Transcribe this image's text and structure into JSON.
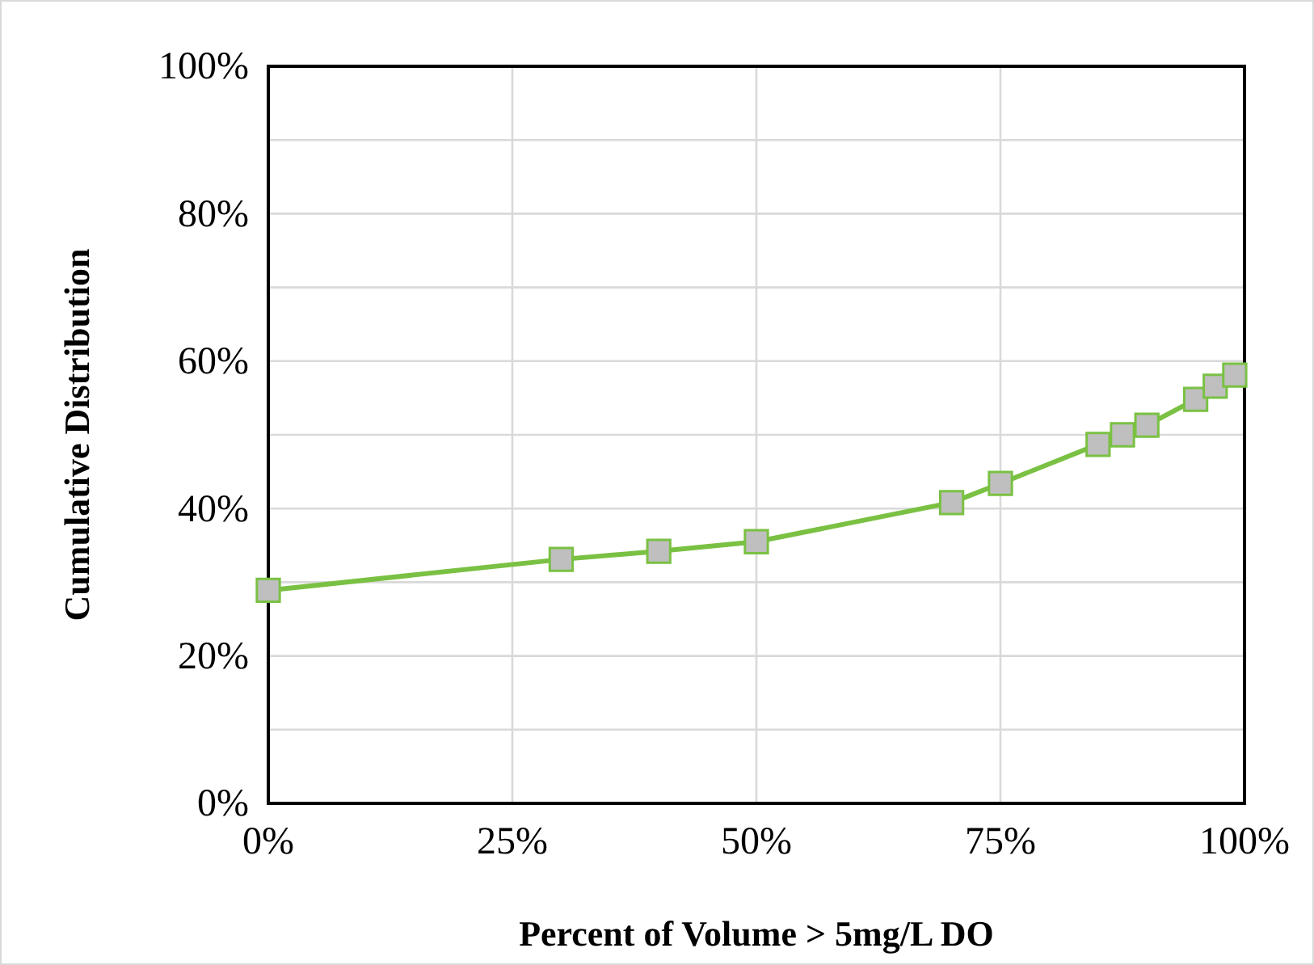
{
  "chart_data": {
    "type": "line",
    "xlabel": "Percent of Volume > 5mg/L DO",
    "ylabel": "Cumulative Distribution",
    "x": [
      0,
      30,
      40,
      50,
      70,
      75,
      85,
      87.5,
      90,
      95,
      97,
      99
    ],
    "series": [
      {
        "color": "#7ac143",
        "values": [
          28.9,
          33.1,
          34.2,
          35.5,
          40.8,
          43.4,
          48.7,
          50,
          51.3,
          54.8,
          56.6,
          58.1
        ]
      }
    ],
    "xlim": [
      0,
      100
    ],
    "xticks": [
      {
        "value": 0,
        "label": "0%"
      },
      {
        "value": 25,
        "label": "25%"
      },
      {
        "value": 50,
        "label": "50%"
      },
      {
        "value": 75,
        "label": "75%"
      },
      {
        "value": 100,
        "label": "100%"
      }
    ],
    "ylim": [
      0,
      100
    ],
    "yticks": [
      {
        "value": 0,
        "label": "0%"
      },
      {
        "value": 10,
        "label": null
      },
      {
        "value": 20,
        "label": "20%"
      },
      {
        "value": 30,
        "label": null
      },
      {
        "value": 40,
        "label": "40%"
      },
      {
        "value": 50,
        "label": null
      },
      {
        "value": 60,
        "label": "60%"
      },
      {
        "value": 70,
        "label": null
      },
      {
        "value": 80,
        "label": "80%"
      },
      {
        "value": 90,
        "label": null
      },
      {
        "value": 100,
        "label": "100%"
      }
    ],
    "grid": true,
    "marker": "square",
    "line_style": "solid"
  }
}
